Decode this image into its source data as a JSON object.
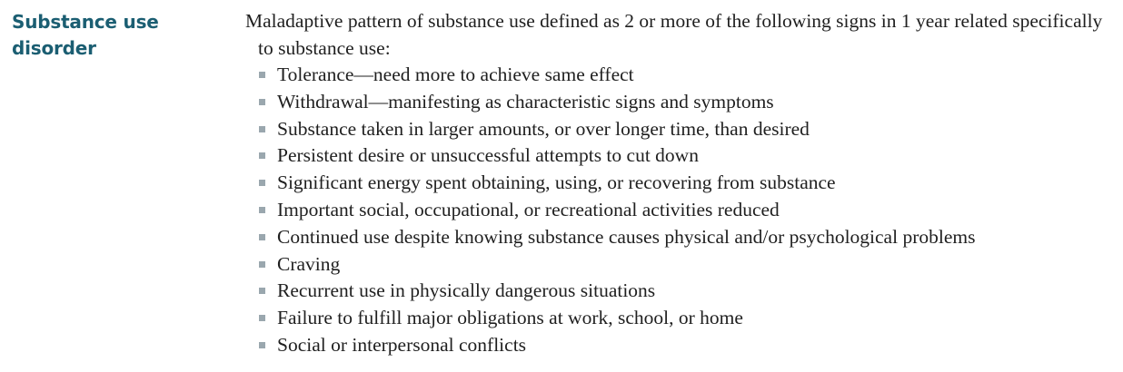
{
  "term": {
    "line1": "Substance use",
    "line2": "disorder"
  },
  "definition": {
    "intro": "Maladaptive pattern of substance use defined as 2 or more of the following signs in 1 year related specifically to substance use:",
    "criteria": [
      "Tolerance—need more to achieve same effect",
      "Withdrawal—manifesting as characteristic signs and symptoms",
      "Substance taken in larger amounts, or over longer time, than desired",
      "Persistent desire or unsuccessful attempts to cut down",
      "Significant energy spent obtaining, using, or recovering from substance",
      "Important social, occupational, or recreational activities reduced",
      "Continued use despite knowing substance causes physical and/or psychological problems",
      "Craving",
      "Recurrent use in physically dangerous situations",
      "Failure to fulfill major obligations at work, school, or home",
      "Social or interpersonal conflicts"
    ]
  },
  "colors": {
    "term": "#1b5e72",
    "body_text": "#1f1f1f",
    "bullet": "#9aa7ae"
  }
}
